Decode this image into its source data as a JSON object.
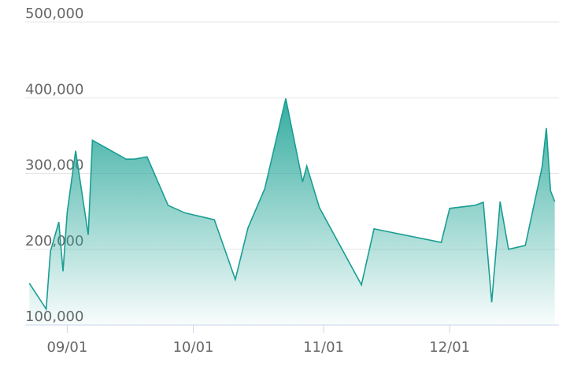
{
  "chart_data": {
    "type": "area",
    "x": [
      "08/23",
      "08/27",
      "08/28",
      "08/30",
      "08/31",
      "09/01",
      "09/03",
      "09/06",
      "09/07",
      "09/15",
      "09/17",
      "09/20",
      "09/25",
      "09/29",
      "10/06",
      "10/11",
      "10/14",
      "10/18",
      "10/23",
      "10/27",
      "10/28",
      "10/31",
      "11/10",
      "11/13",
      "11/29",
      "12/01",
      "12/07",
      "12/09",
      "12/11",
      "12/13",
      "12/15",
      "12/19",
      "12/23",
      "12/24",
      "12/25",
      "12/26"
    ],
    "series": [
      {
        "color": "#1a9e93",
        "values": [
          155000,
          121000,
          197000,
          236000,
          171000,
          249000,
          330000,
          219000,
          344000,
          319000,
          319000,
          322000,
          258000,
          248000,
          239000,
          160000,
          228000,
          280000,
          399000,
          289000,
          310000,
          255000,
          153000,
          227000,
          209000,
          254000,
          258000,
          262000,
          130000,
          263000,
          200000,
          205000,
          309000,
          360000,
          277000,
          263000
        ]
      }
    ],
    "xlim": [
      "08/22",
      "12/27"
    ],
    "xticks": [
      "09/01",
      "10/01",
      "11/01",
      "12/01"
    ],
    "ylim": [
      100000,
      500000
    ],
    "yticks": [
      {
        "value": 100000,
        "label": "100,000"
      },
      {
        "value": 200000,
        "label": "200,000"
      },
      {
        "value": 300000,
        "label": "300,000"
      },
      {
        "value": 400000,
        "label": "400,000"
      },
      {
        "value": 500000,
        "label": "500,000"
      }
    ],
    "grid": true
  }
}
